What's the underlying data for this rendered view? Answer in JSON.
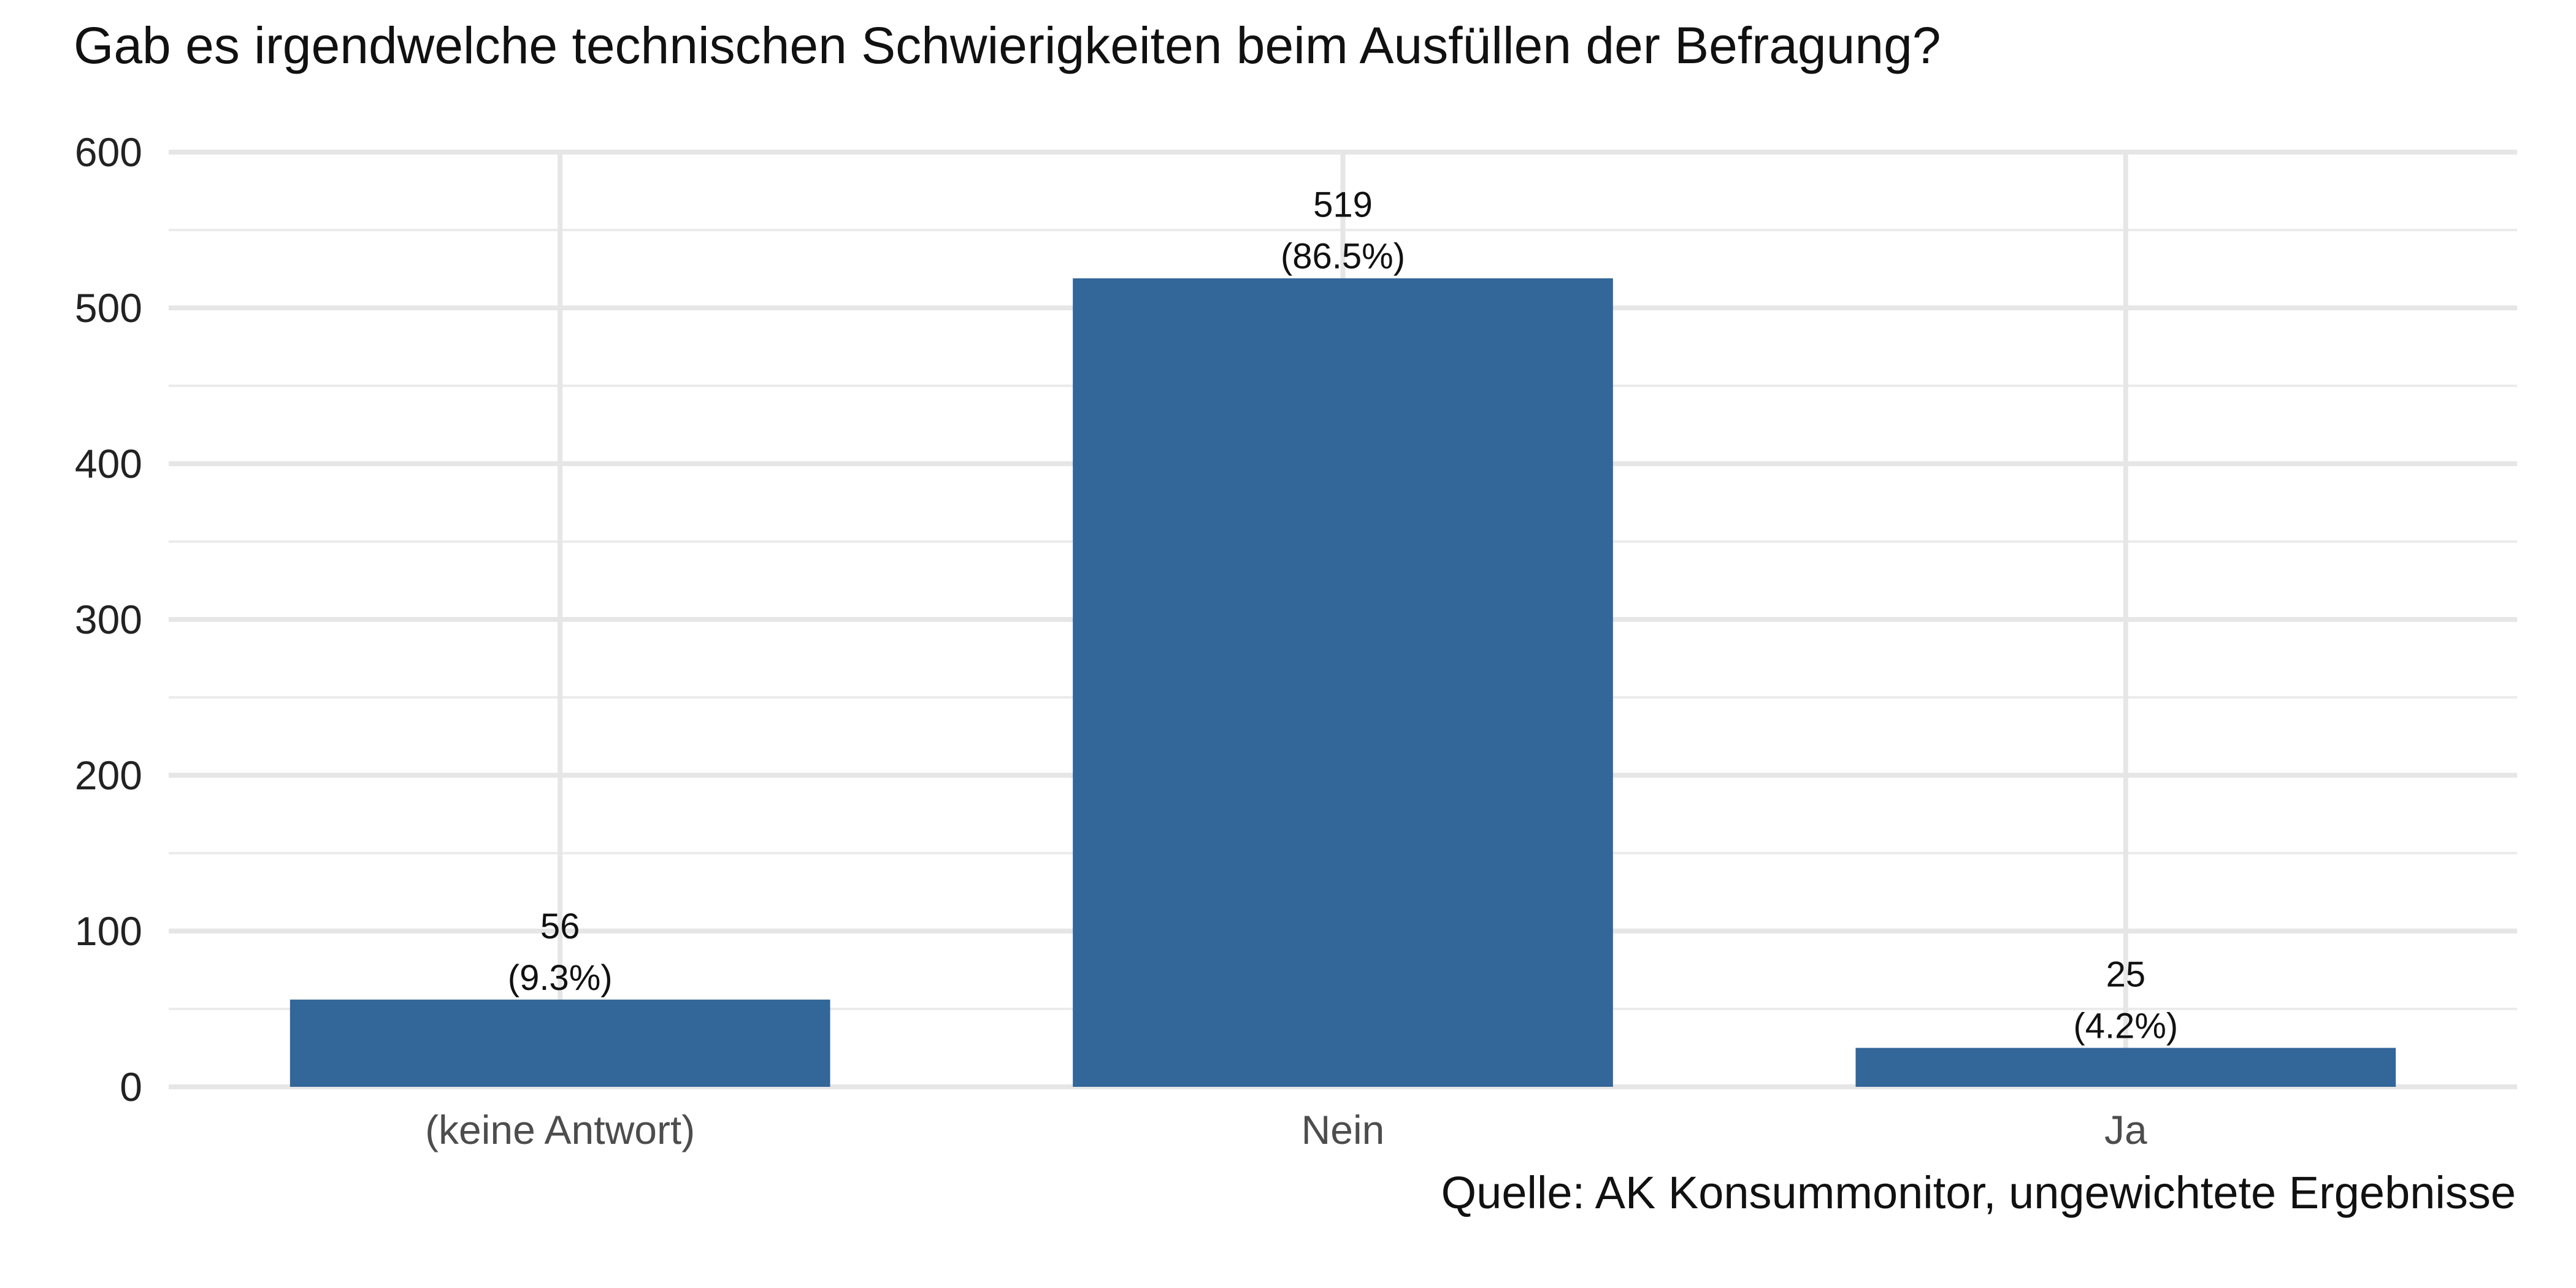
{
  "chart_data": {
    "type": "bar",
    "title": "Gab es irgendwelche technischen Schwierigkeiten beim Ausfüllen der Befragung?",
    "caption": "Quelle: AK Konsummonitor, ungewichtete Ergebnisse",
    "xlabel": "",
    "ylabel": "",
    "categories": [
      "(keine Antwort)",
      "Nein",
      "Ja"
    ],
    "values": [
      56,
      519,
      25
    ],
    "value_labels": [
      "56",
      "519",
      "25"
    ],
    "percent_labels": [
      "(9.3%)",
      "(86.5%)",
      "(4.2%)"
    ],
    "ylim": [
      0,
      600
    ],
    "yticks": [
      0,
      100,
      200,
      300,
      400,
      500,
      600
    ],
    "ytick_labels": [
      "0",
      "100",
      "200",
      "300",
      "400",
      "500",
      "600"
    ],
    "bar_color": "#336699",
    "grid": true,
    "legend": "none"
  }
}
